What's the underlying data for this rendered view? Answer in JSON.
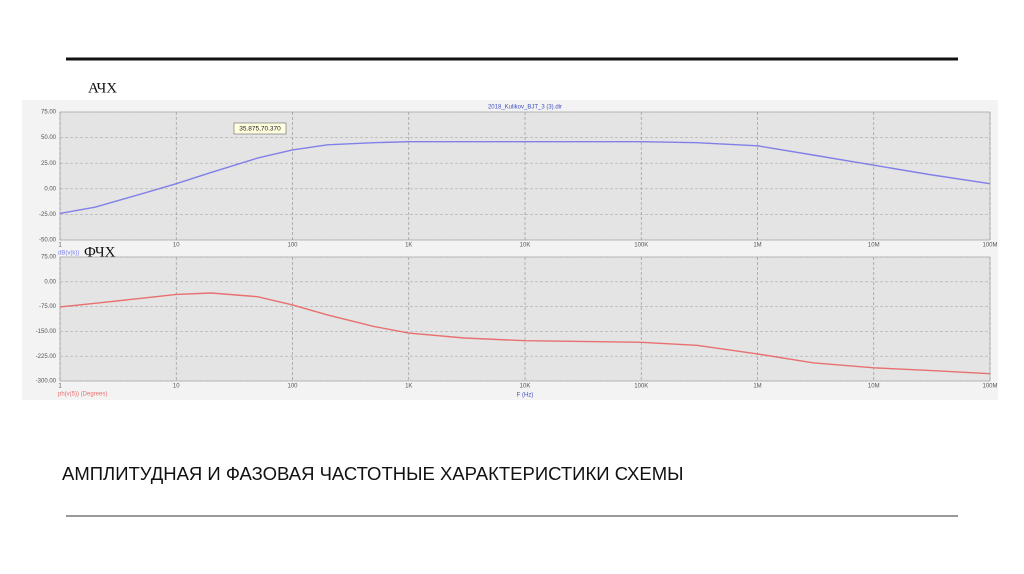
{
  "slide": {
    "heading1": "АЧХ",
    "heading2": "ФЧХ",
    "caption": "АМПЛИТУДНАЯ И ФАЗОВАЯ ЧАСТОТНЫЕ ХАРАКТЕРИСТИКИ СХЕМЫ"
  },
  "chart_data": [
    {
      "type": "line",
      "title": "2018_Kulikov_BJT_3 (3).dir",
      "annotation": "35.875,70.370",
      "xscale": "log",
      "grid": true,
      "x": [
        1,
        2,
        5,
        10,
        20,
        50,
        100,
        200,
        500,
        1000,
        10000,
        100000,
        300000,
        1000000,
        3000000,
        10000000,
        30000000,
        100000000
      ],
      "series": [
        {
          "name": "dB(v(k))",
          "color": "#8080e8",
          "values": [
            -24,
            -18,
            -5,
            5,
            16,
            30,
            38,
            43,
            45,
            46,
            46,
            46,
            45,
            42,
            33,
            23,
            14,
            5
          ]
        }
      ],
      "xlim": [
        1,
        100000000
      ],
      "xticks": [
        {
          "value": 1,
          "label": "1"
        },
        {
          "value": 10,
          "label": "10"
        },
        {
          "value": 100,
          "label": "100"
        },
        {
          "value": 1000,
          "label": "1K"
        },
        {
          "value": 10000,
          "label": "10K"
        },
        {
          "value": 100000,
          "label": "100K"
        },
        {
          "value": 1000000,
          "label": "1M"
        },
        {
          "value": 10000000,
          "label": "10M"
        },
        {
          "value": 100000000,
          "label": "100M"
        }
      ],
      "ylim": [
        -50,
        75
      ],
      "yticks": [
        {
          "value": 75,
          "label": "75.00"
        },
        {
          "value": 50,
          "label": "50.00"
        },
        {
          "value": 25,
          "label": "25.00"
        },
        {
          "value": 0,
          "label": "0.00"
        },
        {
          "value": -25,
          "label": "-25.00"
        },
        {
          "value": -50,
          "label": "-50.00"
        }
      ]
    },
    {
      "type": "line",
      "xlabel": "F (Hz)",
      "xscale": "log",
      "grid": true,
      "x": [
        1,
        2,
        5,
        10,
        20,
        50,
        100,
        200,
        500,
        1000,
        3000,
        10000,
        100000,
        300000,
        1000000,
        3000000,
        10000000,
        30000000,
        100000000
      ],
      "series": [
        {
          "name": "ph(v(5)) (Degrees)",
          "color": "#e87070",
          "values": [
            -76,
            -65,
            -50,
            -38,
            -34,
            -45,
            -70,
            -100,
            -135,
            -155,
            -170,
            -178,
            -183,
            -192,
            -218,
            -245,
            -260,
            -268,
            -278
          ]
        }
      ],
      "xlim": [
        1,
        100000000
      ],
      "xticks": [
        {
          "value": 1,
          "label": "1"
        },
        {
          "value": 10,
          "label": "10"
        },
        {
          "value": 100,
          "label": "100"
        },
        {
          "value": 1000,
          "label": "1K"
        },
        {
          "value": 10000,
          "label": "10K"
        },
        {
          "value": 100000,
          "label": "100K"
        },
        {
          "value": 1000000,
          "label": "1M"
        },
        {
          "value": 10000000,
          "label": "10M"
        },
        {
          "value": 100000000,
          "label": "100M"
        }
      ],
      "ylim": [
        -300,
        75
      ],
      "yticks": [
        {
          "value": 75,
          "label": "75.00"
        },
        {
          "value": 0,
          "label": "0.00"
        },
        {
          "value": -75,
          "label": "-75.00"
        },
        {
          "value": -150,
          "label": "-150.00"
        },
        {
          "value": -225,
          "label": "-225.00"
        },
        {
          "value": -300,
          "label": "-300.00"
        }
      ]
    }
  ]
}
